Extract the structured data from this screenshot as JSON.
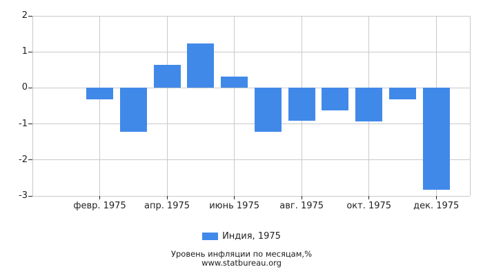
{
  "chart_data": {
    "type": "bar",
    "title": "",
    "legend_label": "Индия, 1975",
    "caption_line1": "Уровень инфляции по месяцам,%",
    "caption_line2": "www.statbureau.org",
    "ylim": [
      -3,
      2
    ],
    "y_tick_labels": [
      "2",
      "1",
      "0",
      "-1",
      "-2",
      "-3"
    ],
    "y_tick_values": [
      2,
      1,
      0,
      -1,
      -2,
      -3
    ],
    "x_tick_labels": [
      "февр. 1975",
      "апр. 1975",
      "июнь 1975",
      "авг. 1975",
      "окт. 1975",
      "дек. 1975"
    ],
    "month_slots": [
      "янв. 1975",
      "февр. 1975",
      "март 1975",
      "апр. 1975",
      "май 1975",
      "июнь 1975",
      "июль 1975",
      "авг. 1975",
      "сент. 1975",
      "окт. 1975",
      "нояб. 1975",
      "дек. 1975"
    ],
    "series": [
      {
        "name": "Индия, 1975",
        "color": "#4189e9",
        "values_by_month_slot": [
          null,
          -0.31,
          -1.21,
          0.64,
          1.24,
          0.31,
          -1.21,
          -0.92,
          -0.62,
          -0.94,
          -0.31,
          -2.83
        ]
      }
    ],
    "grid": true,
    "grid_color": "#c9c9c9",
    "tick_color": "#222222",
    "legend_position": "bottom"
  }
}
